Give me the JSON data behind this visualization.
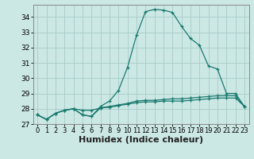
{
  "title": "",
  "xlabel": "Humidex (Indice chaleur)",
  "ylabel": "",
  "background_color": "#cce8e5",
  "grid_color": "#aacfcc",
  "line_color": "#1a7a6e",
  "xlim": [
    -0.5,
    23.5
  ],
  "ylim": [
    27,
    34.8
  ],
  "yticks": [
    27,
    28,
    29,
    30,
    31,
    32,
    33,
    34
  ],
  "xticks": [
    0,
    1,
    2,
    3,
    4,
    5,
    6,
    7,
    8,
    9,
    10,
    11,
    12,
    13,
    14,
    15,
    16,
    17,
    18,
    19,
    20,
    21,
    22,
    23
  ],
  "series1_x": [
    0,
    1,
    2,
    3,
    4,
    5,
    6,
    7,
    8,
    9,
    10,
    11,
    12,
    13,
    14,
    15,
    16,
    17,
    18,
    19,
    20,
    21,
    22,
    23
  ],
  "series1_y": [
    27.6,
    27.3,
    27.7,
    27.9,
    28.0,
    27.6,
    27.5,
    28.15,
    28.5,
    29.2,
    30.7,
    32.8,
    34.35,
    34.5,
    34.45,
    34.3,
    33.4,
    32.6,
    32.15,
    30.8,
    30.6,
    29.0,
    29.0,
    28.15
  ],
  "series2_x": [
    0,
    1,
    2,
    3,
    4,
    5,
    6,
    7,
    8,
    9,
    10,
    11,
    12,
    13,
    14,
    15,
    16,
    17,
    18,
    19,
    20,
    21,
    22,
    23
  ],
  "series2_y": [
    27.6,
    27.3,
    27.7,
    27.9,
    28.0,
    27.9,
    27.9,
    28.05,
    28.15,
    28.25,
    28.35,
    28.5,
    28.55,
    28.55,
    28.6,
    28.65,
    28.65,
    28.7,
    28.75,
    28.8,
    28.85,
    28.85,
    28.85,
    28.15
  ],
  "series3_x": [
    0,
    1,
    2,
    3,
    4,
    5,
    6,
    7,
    8,
    9,
    10,
    11,
    12,
    13,
    14,
    15,
    16,
    17,
    18,
    19,
    20,
    21,
    22,
    23
  ],
  "series3_y": [
    27.6,
    27.3,
    27.7,
    27.9,
    28.0,
    27.6,
    27.5,
    28.05,
    28.1,
    28.2,
    28.3,
    28.4,
    28.45,
    28.45,
    28.5,
    28.5,
    28.5,
    28.55,
    28.6,
    28.65,
    28.7,
    28.7,
    28.7,
    28.15
  ],
  "xlabel_fontsize": 8,
  "tick_fontsize": 6.5
}
